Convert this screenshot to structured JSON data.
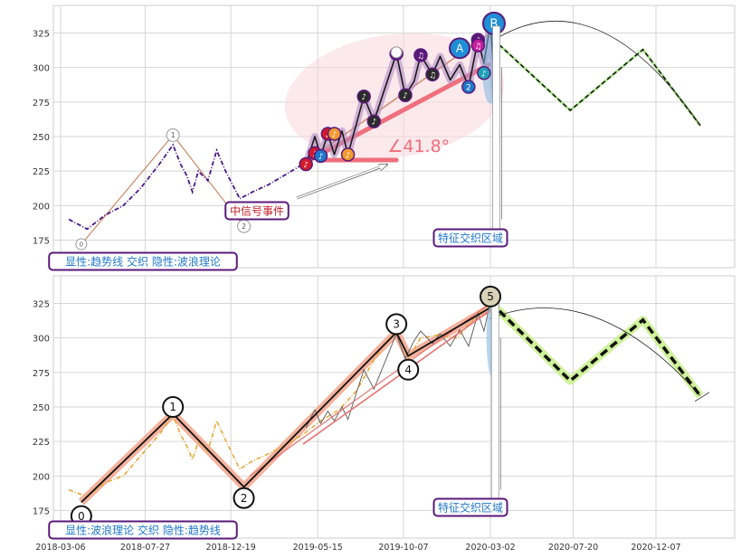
{
  "chart_data": [
    {
      "type": "line",
      "panel": "top",
      "y_ticks": [
        175,
        200,
        225,
        250,
        275,
        300,
        325
      ],
      "ylim": [
        155,
        345
      ],
      "grid": true,
      "wave_points": [
        {
          "label": "0",
          "date": "2018-04-10",
          "value": 172
        },
        {
          "label": "1",
          "date": "2018-09-12",
          "value": 251
        },
        {
          "label": "2",
          "date": "2019-01-10",
          "value": 185
        },
        {
          "label": "A",
          "date": "2020-01-10",
          "value": 314
        },
        {
          "label": "B",
          "date": "2020-03-08",
          "value": 332
        }
      ],
      "price_series": [
        {
          "date": "2018-03-20",
          "value": 190
        },
        {
          "date": "2018-04-20",
          "value": 183
        },
        {
          "date": "2018-05-20",
          "value": 193
        },
        {
          "date": "2018-06-20",
          "value": 200
        },
        {
          "date": "2018-07-20",
          "value": 213
        },
        {
          "date": "2018-08-20",
          "value": 230
        },
        {
          "date": "2018-09-12",
          "value": 244
        },
        {
          "date": "2018-09-25",
          "value": 230
        },
        {
          "date": "2018-10-05",
          "value": 222
        },
        {
          "date": "2018-10-15",
          "value": 210
        },
        {
          "date": "2018-10-25",
          "value": 225
        },
        {
          "date": "2018-11-10",
          "value": 218
        },
        {
          "date": "2018-11-25",
          "value": 240
        },
        {
          "date": "2018-12-10",
          "value": 225
        },
        {
          "date": "2019-01-03",
          "value": 205
        },
        {
          "date": "2019-01-25",
          "value": 210
        },
        {
          "date": "2019-02-20",
          "value": 215
        },
        {
          "date": "2019-03-20",
          "value": 222
        },
        {
          "date": "2019-04-20",
          "value": 230
        }
      ],
      "wave_path": [
        {
          "date": "2019-04-25",
          "value": 230
        },
        {
          "date": "2019-05-10",
          "value": 250
        },
        {
          "date": "2019-05-20",
          "value": 236
        },
        {
          "date": "2019-06-01",
          "value": 252
        },
        {
          "date": "2019-06-12",
          "value": 237
        },
        {
          "date": "2019-06-25",
          "value": 254
        },
        {
          "date": "2019-07-05",
          "value": 237
        },
        {
          "date": "2019-08-01",
          "value": 279
        },
        {
          "date": "2019-08-18",
          "value": 261
        },
        {
          "date": "2019-09-25",
          "value": 310
        },
        {
          "date": "2019-10-10",
          "value": 280
        },
        {
          "date": "2019-10-25",
          "value": 290
        },
        {
          "date": "2019-11-05",
          "value": 309
        },
        {
          "date": "2019-11-25",
          "value": 295
        },
        {
          "date": "2019-12-08",
          "value": 308
        },
        {
          "date": "2019-12-25",
          "value": 291
        },
        {
          "date": "2020-01-10",
          "value": 302
        },
        {
          "date": "2020-01-25",
          "value": 286
        },
        {
          "date": "2020-02-10",
          "value": 320
        },
        {
          "date": "2020-02-20",
          "value": 303
        },
        {
          "date": "2020-03-02",
          "value": 332
        },
        {
          "date": "2020-03-12",
          "value": 270
        }
      ],
      "forecast": [
        {
          "date": "2020-03-08",
          "value": 320
        },
        {
          "date": "2020-07-15",
          "value": 269
        },
        {
          "date": "2020-11-15",
          "value": 313
        },
        {
          "date": "2021-02-20",
          "value": 258
        }
      ],
      "angle_label": "∠41.8°",
      "event_label": "中信号事件",
      "zone_label": "特征交织区域",
      "caption": "显性:趋势线 交织 隐性:波浪理论"
    },
    {
      "type": "line",
      "panel": "bottom",
      "y_ticks": [
        175,
        200,
        225,
        250,
        275,
        300,
        325
      ],
      "ylim": [
        155,
        345
      ],
      "grid": true,
      "x_ticks": [
        "2018-03-06",
        "2018-07-27",
        "2018-12-19",
        "2019-05-15",
        "2019-10-07",
        "2020-03-02",
        "2020-07-20",
        "2020-12-07"
      ],
      "wave_points": [
        {
          "label": "0",
          "date": "2018-04-10",
          "value": 171
        },
        {
          "label": "1",
          "date": "2018-09-12",
          "value": 250
        },
        {
          "label": "2",
          "date": "2019-01-10",
          "value": 184
        },
        {
          "label": "3",
          "date": "2019-09-25",
          "value": 310
        },
        {
          "label": "4",
          "date": "2019-10-15",
          "value": 277
        },
        {
          "label": "5",
          "date": "2020-03-02",
          "value": 330
        }
      ],
      "wave_path": [
        {
          "date": "2018-04-10",
          "value": 181
        },
        {
          "date": "2018-09-12",
          "value": 245
        },
        {
          "date": "2019-01-10",
          "value": 192
        },
        {
          "date": "2019-09-25",
          "value": 304
        },
        {
          "date": "2019-10-15",
          "value": 287
        },
        {
          "date": "2020-03-02",
          "value": 322
        }
      ],
      "forecast": [
        {
          "date": "2020-03-02",
          "value": 326
        },
        {
          "date": "2020-07-15",
          "value": 269
        },
        {
          "date": "2020-11-15",
          "value": 313
        },
        {
          "date": "2021-02-20",
          "value": 258
        }
      ],
      "zone_label": "特征交织区域",
      "caption": "显性:波浪理论 交织 隐性:趋势线"
    }
  ]
}
